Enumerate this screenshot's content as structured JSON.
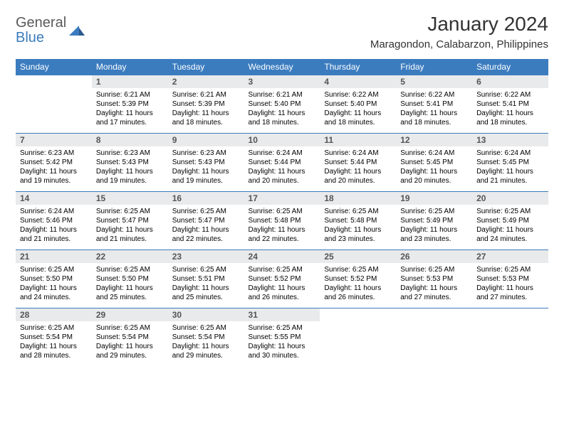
{
  "logo": {
    "part1": "General",
    "part2": "Blue"
  },
  "title": "January 2024",
  "location": "Maragondon, Calabarzon, Philippines",
  "colors": {
    "header_bar": "#3b7cbf",
    "daynum_bg": "#e9eaeb",
    "text": "#000000",
    "title_text": "#333333",
    "logo_grey": "#5a5a5a",
    "logo_blue": "#3b7cbf",
    "background": "#ffffff"
  },
  "typography": {
    "title_fontsize": 28,
    "location_fontsize": 15,
    "dayhead_fontsize": 12,
    "daynum_fontsize": 12,
    "detail_fontsize": 10
  },
  "day_headers": [
    "Sunday",
    "Monday",
    "Tuesday",
    "Wednesday",
    "Thursday",
    "Friday",
    "Saturday"
  ],
  "weeks": [
    {
      "nums": [
        "",
        "1",
        "2",
        "3",
        "4",
        "5",
        "6"
      ],
      "details": [
        null,
        {
          "sunrise": "Sunrise: 6:21 AM",
          "sunset": "Sunset: 5:39 PM",
          "daylight": "Daylight: 11 hours and 17 minutes."
        },
        {
          "sunrise": "Sunrise: 6:21 AM",
          "sunset": "Sunset: 5:39 PM",
          "daylight": "Daylight: 11 hours and 18 minutes."
        },
        {
          "sunrise": "Sunrise: 6:21 AM",
          "sunset": "Sunset: 5:40 PM",
          "daylight": "Daylight: 11 hours and 18 minutes."
        },
        {
          "sunrise": "Sunrise: 6:22 AM",
          "sunset": "Sunset: 5:40 PM",
          "daylight": "Daylight: 11 hours and 18 minutes."
        },
        {
          "sunrise": "Sunrise: 6:22 AM",
          "sunset": "Sunset: 5:41 PM",
          "daylight": "Daylight: 11 hours and 18 minutes."
        },
        {
          "sunrise": "Sunrise: 6:22 AM",
          "sunset": "Sunset: 5:41 PM",
          "daylight": "Daylight: 11 hours and 18 minutes."
        }
      ]
    },
    {
      "nums": [
        "7",
        "8",
        "9",
        "10",
        "11",
        "12",
        "13"
      ],
      "details": [
        {
          "sunrise": "Sunrise: 6:23 AM",
          "sunset": "Sunset: 5:42 PM",
          "daylight": "Daylight: 11 hours and 19 minutes."
        },
        {
          "sunrise": "Sunrise: 6:23 AM",
          "sunset": "Sunset: 5:43 PM",
          "daylight": "Daylight: 11 hours and 19 minutes."
        },
        {
          "sunrise": "Sunrise: 6:23 AM",
          "sunset": "Sunset: 5:43 PM",
          "daylight": "Daylight: 11 hours and 19 minutes."
        },
        {
          "sunrise": "Sunrise: 6:24 AM",
          "sunset": "Sunset: 5:44 PM",
          "daylight": "Daylight: 11 hours and 20 minutes."
        },
        {
          "sunrise": "Sunrise: 6:24 AM",
          "sunset": "Sunset: 5:44 PM",
          "daylight": "Daylight: 11 hours and 20 minutes."
        },
        {
          "sunrise": "Sunrise: 6:24 AM",
          "sunset": "Sunset: 5:45 PM",
          "daylight": "Daylight: 11 hours and 20 minutes."
        },
        {
          "sunrise": "Sunrise: 6:24 AM",
          "sunset": "Sunset: 5:45 PM",
          "daylight": "Daylight: 11 hours and 21 minutes."
        }
      ]
    },
    {
      "nums": [
        "14",
        "15",
        "16",
        "17",
        "18",
        "19",
        "20"
      ],
      "details": [
        {
          "sunrise": "Sunrise: 6:24 AM",
          "sunset": "Sunset: 5:46 PM",
          "daylight": "Daylight: 11 hours and 21 minutes."
        },
        {
          "sunrise": "Sunrise: 6:25 AM",
          "sunset": "Sunset: 5:47 PM",
          "daylight": "Daylight: 11 hours and 21 minutes."
        },
        {
          "sunrise": "Sunrise: 6:25 AM",
          "sunset": "Sunset: 5:47 PM",
          "daylight": "Daylight: 11 hours and 22 minutes."
        },
        {
          "sunrise": "Sunrise: 6:25 AM",
          "sunset": "Sunset: 5:48 PM",
          "daylight": "Daylight: 11 hours and 22 minutes."
        },
        {
          "sunrise": "Sunrise: 6:25 AM",
          "sunset": "Sunset: 5:48 PM",
          "daylight": "Daylight: 11 hours and 23 minutes."
        },
        {
          "sunrise": "Sunrise: 6:25 AM",
          "sunset": "Sunset: 5:49 PM",
          "daylight": "Daylight: 11 hours and 23 minutes."
        },
        {
          "sunrise": "Sunrise: 6:25 AM",
          "sunset": "Sunset: 5:49 PM",
          "daylight": "Daylight: 11 hours and 24 minutes."
        }
      ]
    },
    {
      "nums": [
        "21",
        "22",
        "23",
        "24",
        "25",
        "26",
        "27"
      ],
      "details": [
        {
          "sunrise": "Sunrise: 6:25 AM",
          "sunset": "Sunset: 5:50 PM",
          "daylight": "Daylight: 11 hours and 24 minutes."
        },
        {
          "sunrise": "Sunrise: 6:25 AM",
          "sunset": "Sunset: 5:50 PM",
          "daylight": "Daylight: 11 hours and 25 minutes."
        },
        {
          "sunrise": "Sunrise: 6:25 AM",
          "sunset": "Sunset: 5:51 PM",
          "daylight": "Daylight: 11 hours and 25 minutes."
        },
        {
          "sunrise": "Sunrise: 6:25 AM",
          "sunset": "Sunset: 5:52 PM",
          "daylight": "Daylight: 11 hours and 26 minutes."
        },
        {
          "sunrise": "Sunrise: 6:25 AM",
          "sunset": "Sunset: 5:52 PM",
          "daylight": "Daylight: 11 hours and 26 minutes."
        },
        {
          "sunrise": "Sunrise: 6:25 AM",
          "sunset": "Sunset: 5:53 PM",
          "daylight": "Daylight: 11 hours and 27 minutes."
        },
        {
          "sunrise": "Sunrise: 6:25 AM",
          "sunset": "Sunset: 5:53 PM",
          "daylight": "Daylight: 11 hours and 27 minutes."
        }
      ]
    },
    {
      "nums": [
        "28",
        "29",
        "30",
        "31",
        "",
        "",
        ""
      ],
      "details": [
        {
          "sunrise": "Sunrise: 6:25 AM",
          "sunset": "Sunset: 5:54 PM",
          "daylight": "Daylight: 11 hours and 28 minutes."
        },
        {
          "sunrise": "Sunrise: 6:25 AM",
          "sunset": "Sunset: 5:54 PM",
          "daylight": "Daylight: 11 hours and 29 minutes."
        },
        {
          "sunrise": "Sunrise: 6:25 AM",
          "sunset": "Sunset: 5:54 PM",
          "daylight": "Daylight: 11 hours and 29 minutes."
        },
        {
          "sunrise": "Sunrise: 6:25 AM",
          "sunset": "Sunset: 5:55 PM",
          "daylight": "Daylight: 11 hours and 30 minutes."
        },
        null,
        null,
        null
      ]
    }
  ]
}
